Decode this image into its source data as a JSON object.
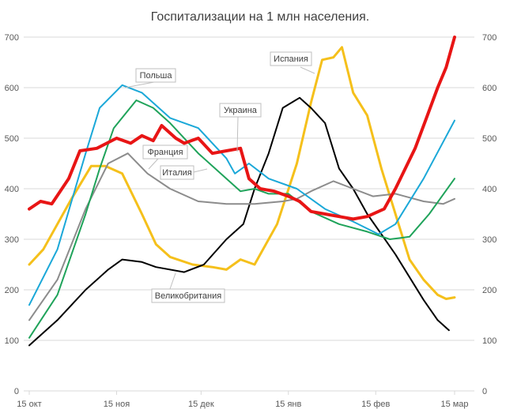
{
  "chart_data": {
    "type": "line",
    "title": "Госпитализации на 1 млн населения.",
    "xlabel": "",
    "ylabel": "",
    "ylim": [
      0,
      700
    ],
    "yticks": [
      "0",
      "100",
      "200",
      "300",
      "400",
      "500",
      "600",
      "700"
    ],
    "x_unit": "days since 15 окт",
    "xlim": [
      0,
      156
    ],
    "xticks": [
      {
        "day": 0,
        "label": "15 окт"
      },
      {
        "day": 31,
        "label": "15 ноя"
      },
      {
        "day": 61,
        "label": "15 дек"
      },
      {
        "day": 92,
        "label": "15 янв"
      },
      {
        "day": 123,
        "label": "15 фев"
      },
      {
        "day": 151,
        "label": "15 мар"
      }
    ],
    "grid": true,
    "legend": "inline callout labels",
    "series": [
      {
        "name": "Испания",
        "color": "#f5c01b",
        "width": 3,
        "points": [
          [
            0,
            250
          ],
          [
            5,
            280
          ],
          [
            15,
            380
          ],
          [
            22,
            445
          ],
          [
            27,
            445
          ],
          [
            33,
            430
          ],
          [
            40,
            350
          ],
          [
            45,
            290
          ],
          [
            50,
            265
          ],
          [
            58,
            250
          ],
          [
            65,
            245
          ],
          [
            70,
            240
          ],
          [
            75,
            260
          ],
          [
            80,
            250
          ],
          [
            88,
            330
          ],
          [
            95,
            450
          ],
          [
            100,
            570
          ],
          [
            104,
            655
          ],
          [
            108,
            660
          ],
          [
            111,
            680
          ],
          [
            115,
            590
          ],
          [
            120,
            545
          ],
          [
            125,
            440
          ],
          [
            130,
            350
          ],
          [
            135,
            260
          ],
          [
            140,
            220
          ],
          [
            145,
            190
          ],
          [
            148,
            182
          ],
          [
            151,
            185
          ]
        ]
      },
      {
        "name": "Великобритания",
        "color": "#000000",
        "width": 2,
        "points": [
          [
            0,
            90
          ],
          [
            10,
            140
          ],
          [
            20,
            200
          ],
          [
            28,
            240
          ],
          [
            33,
            260
          ],
          [
            40,
            255
          ],
          [
            45,
            245
          ],
          [
            55,
            235
          ],
          [
            62,
            250
          ],
          [
            70,
            300
          ],
          [
            76,
            330
          ],
          [
            80,
            400
          ],
          [
            85,
            470
          ],
          [
            90,
            560
          ],
          [
            96,
            580
          ],
          [
            100,
            560
          ],
          [
            105,
            530
          ],
          [
            110,
            440
          ],
          [
            115,
            400
          ],
          [
            120,
            350
          ],
          [
            125,
            310
          ],
          [
            130,
            270
          ],
          [
            140,
            180
          ],
          [
            145,
            140
          ],
          [
            149,
            120
          ]
        ]
      },
      {
        "name": "Франция",
        "color": "#8c8c8c",
        "width": 2,
        "points": [
          [
            0,
            140
          ],
          [
            10,
            220
          ],
          [
            20,
            360
          ],
          [
            28,
            450
          ],
          [
            35,
            470
          ],
          [
            42,
            430
          ],
          [
            50,
            400
          ],
          [
            60,
            375
          ],
          [
            70,
            370
          ],
          [
            80,
            370
          ],
          [
            90,
            375
          ],
          [
            95,
            380
          ],
          [
            100,
            395
          ],
          [
            108,
            415
          ],
          [
            115,
            400
          ],
          [
            122,
            385
          ],
          [
            130,
            390
          ],
          [
            140,
            375
          ],
          [
            147,
            370
          ],
          [
            151,
            380
          ]
        ]
      },
      {
        "name": "Италия",
        "color": "#1fa35a",
        "width": 2,
        "points": [
          [
            0,
            105
          ],
          [
            10,
            190
          ],
          [
            20,
            350
          ],
          [
            25,
            440
          ],
          [
            30,
            520
          ],
          [
            38,
            575
          ],
          [
            44,
            560
          ],
          [
            50,
            530
          ],
          [
            60,
            470
          ],
          [
            70,
            420
          ],
          [
            75,
            395
          ],
          [
            80,
            400
          ],
          [
            85,
            390
          ],
          [
            92,
            390
          ],
          [
            100,
            355
          ],
          [
            110,
            330
          ],
          [
            120,
            315
          ],
          [
            128,
            300
          ],
          [
            135,
            305
          ],
          [
            142,
            350
          ],
          [
            151,
            420
          ]
        ]
      },
      {
        "name": "Польша",
        "color": "#1ba8d8",
        "width": 2,
        "points": [
          [
            0,
            170
          ],
          [
            10,
            280
          ],
          [
            20,
            470
          ],
          [
            25,
            560
          ],
          [
            33,
            605
          ],
          [
            40,
            590
          ],
          [
            50,
            540
          ],
          [
            60,
            520
          ],
          [
            70,
            460
          ],
          [
            73,
            430
          ],
          [
            78,
            450
          ],
          [
            85,
            420
          ],
          [
            95,
            400
          ],
          [
            105,
            360
          ],
          [
            115,
            335
          ],
          [
            124,
            310
          ],
          [
            130,
            330
          ],
          [
            140,
            420
          ],
          [
            151,
            535
          ]
        ]
      },
      {
        "name": "Украина",
        "color": "#e81515",
        "width": 4,
        "points": [
          [
            0,
            360
          ],
          [
            4,
            375
          ],
          [
            8,
            370
          ],
          [
            14,
            420
          ],
          [
            18,
            475
          ],
          [
            24,
            480
          ],
          [
            31,
            500
          ],
          [
            36,
            490
          ],
          [
            40,
            505
          ],
          [
            44,
            495
          ],
          [
            47,
            525
          ],
          [
            52,
            500
          ],
          [
            55,
            490
          ],
          [
            60,
            500
          ],
          [
            65,
            470
          ],
          [
            70,
            475
          ],
          [
            75,
            480
          ],
          [
            78,
            420
          ],
          [
            82,
            400
          ],
          [
            87,
            395
          ],
          [
            92,
            385
          ],
          [
            96,
            375
          ],
          [
            100,
            355
          ],
          [
            105,
            350
          ],
          [
            110,
            345
          ],
          [
            115,
            340
          ],
          [
            120,
            345
          ],
          [
            126,
            360
          ],
          [
            130,
            400
          ],
          [
            137,
            480
          ],
          [
            141,
            540
          ],
          [
            145,
            600
          ],
          [
            148,
            640
          ],
          [
            151,
            700
          ]
        ]
      }
    ]
  }
}
